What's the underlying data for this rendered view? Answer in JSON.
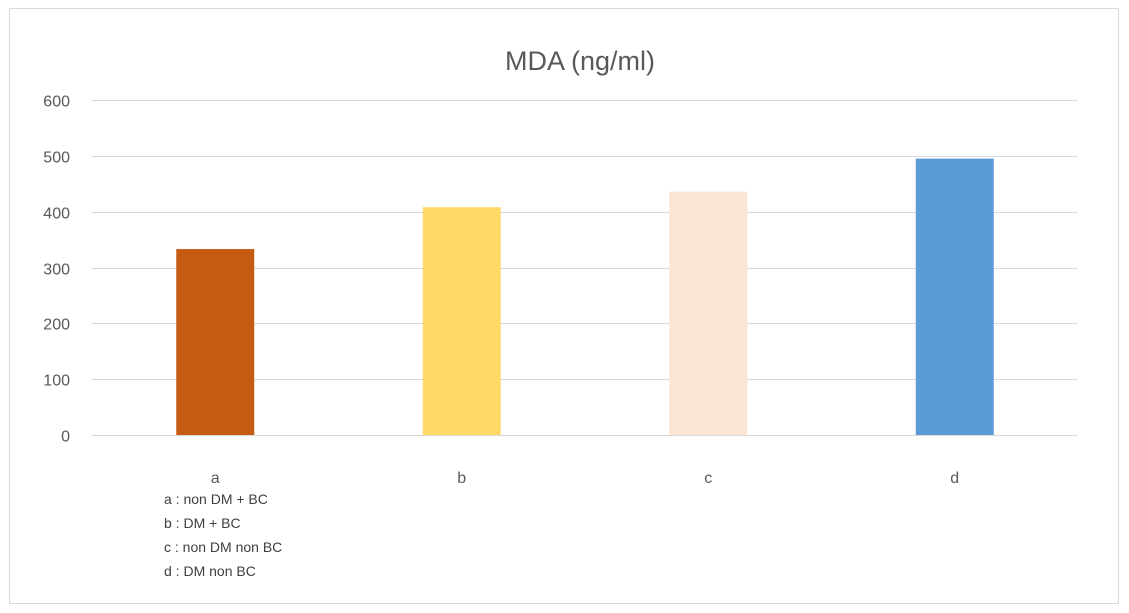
{
  "chart_data": {
    "type": "bar",
    "title": "MDA (ng/ml)",
    "categories": [
      "a",
      "b",
      "c",
      "d"
    ],
    "values": [
      333,
      408,
      436,
      495
    ],
    "colors": [
      "#c55a11",
      "#ffd966",
      "#fbe5d6",
      "#5b9bd5"
    ],
    "ylim": [
      0,
      600
    ],
    "yticks": [
      0,
      100,
      200,
      300,
      400,
      500,
      600
    ],
    "grid": true,
    "legend": "none",
    "annotations": [
      "a : non DM + BC",
      "b : DM + BC",
      "c : non DM non BC",
      "d : DM non BC"
    ]
  }
}
